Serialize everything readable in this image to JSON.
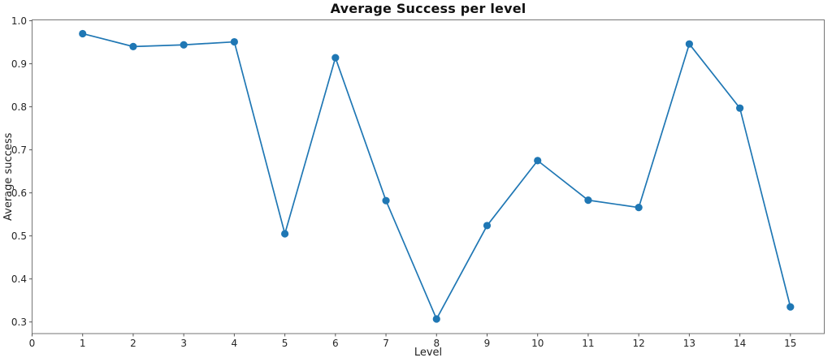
{
  "figure": {
    "background": "#ffffff"
  },
  "chart_data": {
    "type": "line",
    "title": "Average Success per level",
    "xlabel": "Level",
    "ylabel": "Average success",
    "x": [
      1,
      2,
      3,
      4,
      5,
      6,
      7,
      8,
      9,
      10,
      11,
      12,
      13,
      14,
      15
    ],
    "values": [
      0.97,
      0.94,
      0.944,
      0.951,
      0.505,
      0.914,
      0.582,
      0.307,
      0.524,
      0.675,
      0.583,
      0.566,
      0.946,
      0.797,
      0.335
    ],
    "xticks": [
      0,
      1,
      2,
      3,
      4,
      5,
      6,
      7,
      8,
      9,
      10,
      11,
      12,
      13,
      14,
      15
    ],
    "yticks": [
      0.3,
      0.4,
      0.5,
      0.6,
      0.7,
      0.8,
      0.9,
      1.0
    ],
    "xlim": [
      0,
      15.67
    ],
    "ylim": [
      0.273,
      1.002
    ],
    "grid": false,
    "legend_position": "none",
    "line_color": "#1f77b4",
    "marker": "o",
    "marker_color": "#1f77b4",
    "spine_color": "#757575",
    "tick_color": "#555555",
    "text_color": "#262626"
  }
}
